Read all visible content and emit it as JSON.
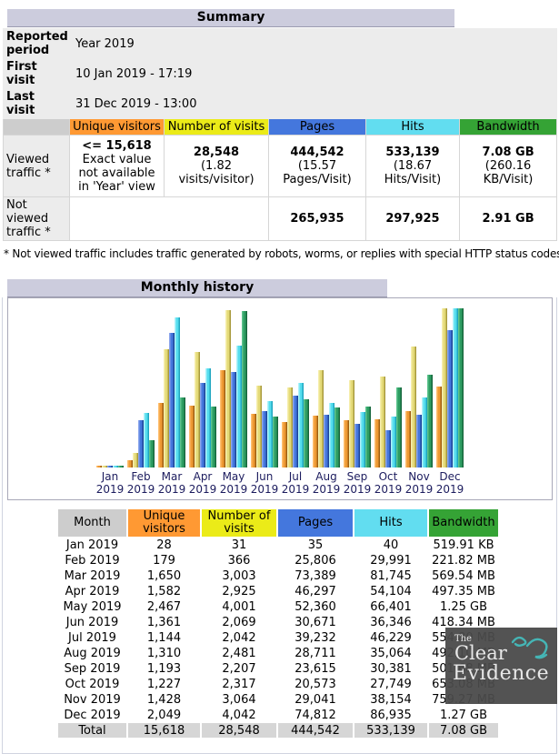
{
  "summary": {
    "title": "Summary",
    "reported_period_label": "Reported period",
    "reported_period_value": "Year 2019",
    "first_visit_label": "First visit",
    "first_visit_value": "10 Jan 2019 - 17:19",
    "last_visit_label": "Last visit",
    "last_visit_value": "31 Dec 2019 - 13:00",
    "columns": [
      "Unique visitors",
      "Number of visits",
      "Pages",
      "Hits",
      "Bandwidth"
    ],
    "viewed_label": "Viewed traffic *",
    "viewed": {
      "unique_main": "<= 15,618",
      "unique_note": "Exact value not available in 'Year' view",
      "visits_main": "28,548",
      "visits_note": "(1.82 visits/visitor)",
      "pages_main": "444,542",
      "pages_note": "(15.57 Pages/Visit)",
      "hits_main": "533,139",
      "hits_note": "(18.67 Hits/Visit)",
      "bandwidth_main": "7.08 GB",
      "bandwidth_note": "(260.16 KB/Visit)"
    },
    "not_viewed_label": "Not viewed traffic *",
    "not_viewed": {
      "pages": "265,935",
      "hits": "297,925",
      "bandwidth": "2.91 GB"
    },
    "footnote": "* Not viewed traffic includes traffic generated by robots, worms, or replies with special HTTP status codes."
  },
  "monthly": {
    "title": "Monthly history",
    "table_columns": [
      "Month",
      "Unique visitors",
      "Number of visits",
      "Pages",
      "Hits",
      "Bandwidth"
    ],
    "rows": [
      {
        "month": "Jan 2019",
        "unique": "28",
        "visits": "31",
        "pages": "35",
        "hits": "40",
        "bandwidth": "519.91 KB"
      },
      {
        "month": "Feb 2019",
        "unique": "179",
        "visits": "366",
        "pages": "25,806",
        "hits": "29,991",
        "bandwidth": "221.82 MB"
      },
      {
        "month": "Mar 2019",
        "unique": "1,650",
        "visits": "3,003",
        "pages": "73,389",
        "hits": "81,745",
        "bandwidth": "569.54 MB"
      },
      {
        "month": "Apr 2019",
        "unique": "1,582",
        "visits": "2,925",
        "pages": "46,297",
        "hits": "54,104",
        "bandwidth": "497.35 MB"
      },
      {
        "month": "May 2019",
        "unique": "2,467",
        "visits": "4,001",
        "pages": "52,360",
        "hits": "66,401",
        "bandwidth": "1.25 GB"
      },
      {
        "month": "Jun 2019",
        "unique": "1,361",
        "visits": "2,069",
        "pages": "30,671",
        "hits": "36,346",
        "bandwidth": "418.34 MB"
      },
      {
        "month": "Jul 2019",
        "unique": "1,144",
        "visits": "2,042",
        "pages": "39,232",
        "hits": "46,229",
        "bandwidth": "554.80 MB"
      },
      {
        "month": "Aug 2019",
        "unique": "1,310",
        "visits": "2,481",
        "pages": "28,711",
        "hits": "35,064",
        "bandwidth": "492.10 MB"
      },
      {
        "month": "Sep 2019",
        "unique": "1,193",
        "visits": "2,207",
        "pages": "23,615",
        "hits": "30,381",
        "bandwidth": "501.68 MB"
      },
      {
        "month": "Oct 2019",
        "unique": "1,227",
        "visits": "2,317",
        "pages": "20,573",
        "hits": "27,749",
        "bandwidth": "653.08 MB"
      },
      {
        "month": "Nov 2019",
        "unique": "1,428",
        "visits": "3,064",
        "pages": "29,041",
        "hits": "38,154",
        "bandwidth": "759.27 MB"
      },
      {
        "month": "Dec 2019",
        "unique": "2,049",
        "visits": "4,042",
        "pages": "74,812",
        "hits": "86,935",
        "bandwidth": "1.27 GB"
      }
    ],
    "total": {
      "month": "Total",
      "unique": "15,618",
      "visits": "28,548",
      "pages": "444,542",
      "hits": "533,139",
      "bandwidth": "7.08 GB"
    }
  },
  "chart_data": {
    "type": "bar",
    "title": "Monthly history",
    "categories": [
      "Jan 2019",
      "Feb 2019",
      "Mar 2019",
      "Apr 2019",
      "May 2019",
      "Jun 2019",
      "Jul 2019",
      "Aug 2019",
      "Sep 2019",
      "Oct 2019",
      "Nov 2019",
      "Dec 2019"
    ],
    "layout_note": "5 grouped bars per month; each scale group is normalized to its own maximum; no axes or legend drawn",
    "series": [
      {
        "name": "Unique visitors",
        "scale_group": "visits",
        "values": [
          28,
          179,
          1650,
          1582,
          2467,
          1361,
          1144,
          1310,
          1193,
          1227,
          1428,
          2049
        ],
        "colors": {
          "light": "#FFC070",
          "main": "#EE9933",
          "dark": "#A05E10"
        }
      },
      {
        "name": "Number of visits",
        "scale_group": "visits",
        "values": [
          31,
          366,
          3003,
          2925,
          4001,
          2069,
          2042,
          2481,
          2207,
          2317,
          3064,
          4042
        ],
        "colors": {
          "light": "#F6EEAC",
          "main": "#E4DA78",
          "dark": "#A89A3C"
        }
      },
      {
        "name": "Pages",
        "scale_group": "pageshits",
        "values": [
          35,
          25806,
          73389,
          46297,
          52360,
          30671,
          39232,
          28711,
          23615,
          20573,
          29041,
          74812
        ],
        "colors": {
          "light": "#8CA6EC",
          "main": "#4477DD",
          "dark": "#1C4499"
        }
      },
      {
        "name": "Hits",
        "scale_group": "pageshits",
        "values": [
          40,
          29991,
          81745,
          54104,
          66401,
          36346,
          46229,
          35064,
          30381,
          27749,
          38154,
          86935
        ],
        "colors": {
          "light": "#AEF2FA",
          "main": "#55DDEE",
          "dark": "#1FA6C0"
        }
      },
      {
        "name": "Bandwidth (MB)",
        "scale_group": "bandwidth",
        "values": [
          0.51,
          221.82,
          569.54,
          497.35,
          1280,
          418.34,
          554.8,
          492.1,
          501.68,
          653.08,
          759.27,
          1301.44
        ],
        "colors": {
          "light": "#5EC48E",
          "main": "#2E9D62",
          "dark": "#16663C"
        }
      }
    ]
  },
  "logo": {
    "line1": "The",
    "line2": "Clear",
    "line3": "Evidence",
    "accent_color": "#45B5B5"
  },
  "colors": {
    "title_bar": "#CCCCDD",
    "header_unique": "#FF9933",
    "header_visits": "#EBEB18",
    "header_pages": "#4477DD",
    "header_hits": "#62DDF0",
    "header_bandwidth": "#35A335",
    "info_bg": "#ECECEC",
    "total_row_bg": "#D6D6D6"
  }
}
